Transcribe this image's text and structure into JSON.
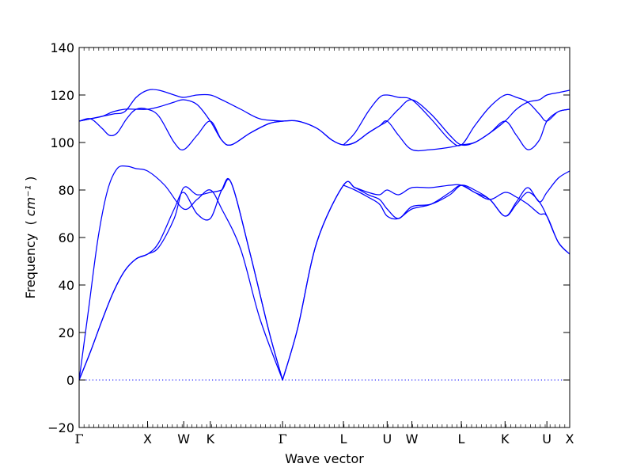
{
  "chart_data": {
    "type": "line",
    "title": "",
    "xlabel": "Wave vector",
    "ylabel": "Frequency",
    "ylabel_unit": "cm⁻¹",
    "ylim": [
      -20,
      140
    ],
    "xlim": [
      0,
      25.8
    ],
    "yticks": [
      -20,
      0,
      20,
      40,
      60,
      80,
      100,
      120,
      140
    ],
    "ytick_labels": [
      "−20",
      "0",
      "20",
      "40",
      "60",
      "80",
      "100",
      "120",
      "140"
    ],
    "x_high_symmetry_points": [
      {
        "label": "Γ",
        "x": 0
      },
      {
        "label": "X",
        "x": 3.6
      },
      {
        "label": "W",
        "x": 5.5
      },
      {
        "label": "K",
        "x": 6.9
      },
      {
        "label": "Γ",
        "x": 10.7
      },
      {
        "label": "L",
        "x": 13.9
      },
      {
        "label": "U",
        "x": 16.2
      },
      {
        "label": "W",
        "x": 17.5
      },
      {
        "label": "L",
        "x": 20.1
      },
      {
        "label": "K",
        "x": 22.4
      },
      {
        "label": "U",
        "x": 24.6
      },
      {
        "label": "X",
        "x": 25.8
      }
    ],
    "grid": false,
    "line_color": "#0000ff",
    "zero_line": {
      "y": 0,
      "style": "dotted",
      "color": "#0000ff"
    },
    "series": [
      {
        "x": [
          0,
          0.6,
          1.2,
          1.8,
          2.4,
          3.0,
          3.6,
          4.2,
          5.0,
          5.5,
          6.2,
          6.9,
          7.5,
          8.0,
          9.0,
          10.0,
          10.7
        ],
        "values": [
          0,
          12,
          25,
          37,
          46,
          51,
          53,
          58,
          72,
          79,
          70,
          68,
          80,
          83,
          53,
          20,
          0
        ]
      },
      {
        "x": [
          0,
          0.6,
          1.2,
          1.8,
          2.4,
          3.0,
          3.6,
          4.2,
          5.0,
          5.5,
          6.2,
          6.9,
          7.5,
          8.0,
          9.0,
          10.0,
          10.7
        ],
        "values": [
          0,
          12,
          25,
          37,
          46,
          51,
          53,
          56,
          68,
          81,
          78,
          79,
          80,
          83,
          53,
          20,
          0
        ]
      },
      {
        "x": [
          0,
          0.5,
          1.0,
          1.5,
          2.0,
          2.5,
          3.0,
          3.6,
          4.5,
          5.5,
          6.2,
          6.9,
          7.5,
          8.5,
          9.5,
          10.7
        ],
        "values": [
          0,
          30,
          60,
          80,
          89,
          90,
          89,
          88,
          82,
          72,
          76,
          80,
          72,
          55,
          26,
          0
        ]
      },
      {
        "x": [
          10.7,
          11.5,
          12.5,
          13.9,
          14.5,
          15.2,
          15.8,
          16.2,
          16.8,
          17.5,
          18.5,
          19.5,
          20.1,
          20.8,
          21.6,
          22.4,
          23.0,
          23.6,
          24.2,
          24.6,
          25.2,
          25.8
        ],
        "values": [
          0,
          22,
          58,
          82,
          81,
          78,
          76,
          72,
          68,
          73,
          74,
          78,
          82,
          80,
          76,
          69,
          74,
          79,
          75,
          69,
          58,
          53
        ]
      },
      {
        "x": [
          10.7,
          11.5,
          12.5,
          13.9,
          14.5,
          15.2,
          15.8,
          16.2,
          16.8,
          17.5,
          18.5,
          19.5,
          20.1,
          20.8,
          21.6,
          22.4,
          23.0,
          23.6,
          24.2,
          24.6,
          25.2,
          25.8
        ],
        "values": [
          0,
          22,
          58,
          82,
          81,
          79,
          78,
          80,
          78,
          81,
          81,
          82,
          82,
          79,
          76,
          79,
          77,
          74,
          70,
          69,
          58,
          53
        ]
      },
      {
        "x": [
          13.9,
          14.5,
          15.2,
          15.8,
          16.2,
          16.8,
          17.5,
          18.5,
          19.5,
          20.1,
          20.8,
          21.6,
          22.4,
          23.0,
          23.6,
          24.2,
          24.6,
          25.2,
          25.8
        ],
        "values": [
          82,
          80,
          77,
          74,
          69,
          68,
          72,
          74,
          79,
          82,
          79,
          76,
          69,
          75,
          81,
          75,
          79,
          85,
          88
        ]
      },
      {
        "x": [
          0,
          0.6,
          1.2,
          1.6,
          2.0,
          2.5,
          3.0,
          3.6,
          4.2,
          5.0,
          5.5,
          6.2,
          6.9,
          7.5,
          8.0,
          9.0,
          10.0,
          10.7
        ],
        "values": [
          109,
          110,
          106,
          103,
          104,
          110,
          114,
          114,
          111,
          100,
          97,
          103,
          109,
          101,
          99,
          104,
          108,
          109
        ]
      },
      {
        "x": [
          0,
          0.6,
          1.2,
          1.8,
          2.4,
          3.0,
          3.6,
          4.2,
          5.0,
          5.5,
          6.2,
          6.9,
          7.5,
          8.0,
          9.0,
          10.0,
          10.7
        ],
        "values": [
          109,
          110,
          111,
          113,
          114,
          114,
          114,
          115,
          117,
          118,
          116,
          109,
          101,
          99,
          104,
          108,
          109
        ]
      },
      {
        "x": [
          0,
          0.6,
          1.2,
          1.8,
          2.4,
          3.0,
          3.6,
          4.2,
          5.0,
          5.5,
          6.2,
          6.9,
          7.5,
          8.5,
          9.5,
          10.7
        ],
        "values": [
          109,
          110,
          111,
          112,
          113,
          119,
          122,
          122,
          120,
          119,
          120,
          120,
          118,
          114,
          110,
          109
        ]
      },
      {
        "x": [
          10.7,
          11.5,
          12.5,
          13.3,
          13.9,
          14.5,
          15.2,
          15.8,
          16.2,
          16.8,
          17.5,
          18.5,
          19.5,
          20.1,
          20.8,
          21.6,
          22.4,
          23.0,
          23.6,
          24.2,
          24.6,
          25.2,
          25.8
        ],
        "values": [
          109,
          109,
          106,
          101,
          99,
          100,
          104,
          107,
          109,
          114,
          118,
          112,
          103,
          99,
          100,
          104,
          109,
          103,
          97,
          101,
          109,
          113,
          114
        ]
      },
      {
        "x": [
          10.7,
          11.5,
          12.5,
          13.3,
          13.9,
          14.5,
          15.2,
          15.8,
          16.2,
          16.8,
          17.5,
          18.5,
          19.5,
          20.1,
          20.8,
          21.6,
          22.4,
          23.0,
          23.6,
          24.2,
          24.6,
          25.2,
          25.8
        ],
        "values": [
          109,
          109,
          106,
          101,
          99,
          100,
          104,
          107,
          109,
          103,
          97,
          97,
          98,
          99,
          100,
          104,
          109,
          114,
          117,
          118,
          120,
          121,
          122
        ]
      },
      {
        "x": [
          13.9,
          14.5,
          15.2,
          15.8,
          16.2,
          16.8,
          17.5,
          18.5,
          19.5,
          20.1,
          20.8,
          21.6,
          22.4,
          23.0,
          23.6,
          24.2,
          24.6,
          25.2,
          25.8
        ],
        "values": [
          99,
          104,
          113,
          119,
          120,
          119,
          118,
          110,
          101,
          99,
          107,
          115,
          120,
          119,
          117,
          112,
          109,
          113,
          114
        ]
      }
    ]
  }
}
